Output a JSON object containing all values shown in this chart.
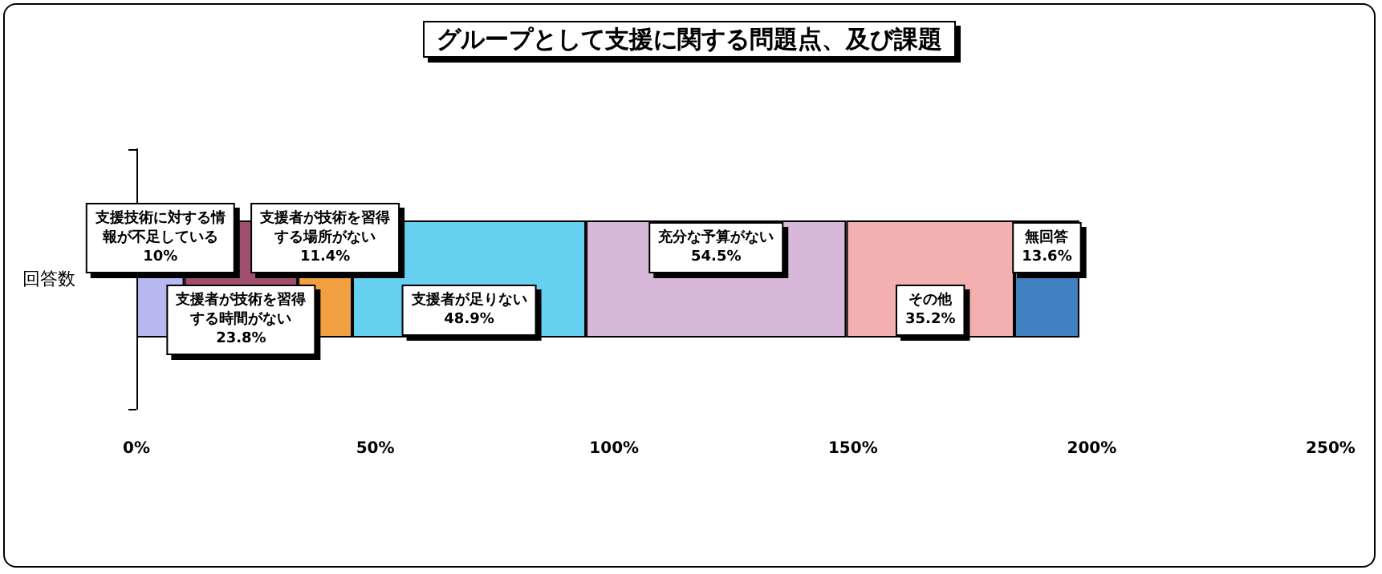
{
  "chart_data": {
    "type": "bar",
    "title": "グループとして支援に関する問題点、及び課題",
    "orientation": "horizontal",
    "stacked": true,
    "categories": [
      "回答数"
    ],
    "series": [
      {
        "name": "支援技術に対する情報が不足している",
        "color": "#b8b8f0",
        "values": [
          10
        ],
        "value_labels": [
          "10%"
        ]
      },
      {
        "name": "支援者が技術を習得する時間がない",
        "color": "#a0506e",
        "values": [
          23.8
        ],
        "value_labels": [
          "23.8%"
        ]
      },
      {
        "name": "支援者が技術を習得する場所がない",
        "color": "#f0a040",
        "values": [
          11.4
        ],
        "value_labels": [
          "11.4%"
        ]
      },
      {
        "name": "支援者が足りない",
        "color": "#66d0f0",
        "values": [
          48.9
        ],
        "value_labels": [
          "48.9%"
        ]
      },
      {
        "name": "充分な予算がない",
        "color": "#d8b8d8",
        "values": [
          54.5
        ],
        "value_labels": [
          "54.5%"
        ]
      },
      {
        "name": "その他",
        "color": "#f4b0b0",
        "values": [
          35.2
        ],
        "value_labels": [
          "35.2%"
        ]
      },
      {
        "name": "無回答",
        "color": "#4080c0",
        "values": [
          13.6
        ],
        "value_labels": [
          "13.6%"
        ]
      }
    ],
    "xlim": [
      0,
      250
    ],
    "xticks": [
      {
        "value": 0,
        "label": "0%"
      },
      {
        "value": 50,
        "label": "50%"
      },
      {
        "value": 100,
        "label": "100%"
      },
      {
        "value": 150,
        "label": "150%"
      },
      {
        "value": 200,
        "label": "200%"
      },
      {
        "value": 250,
        "label": "250%"
      }
    ],
    "grid": false,
    "legend": false
  }
}
